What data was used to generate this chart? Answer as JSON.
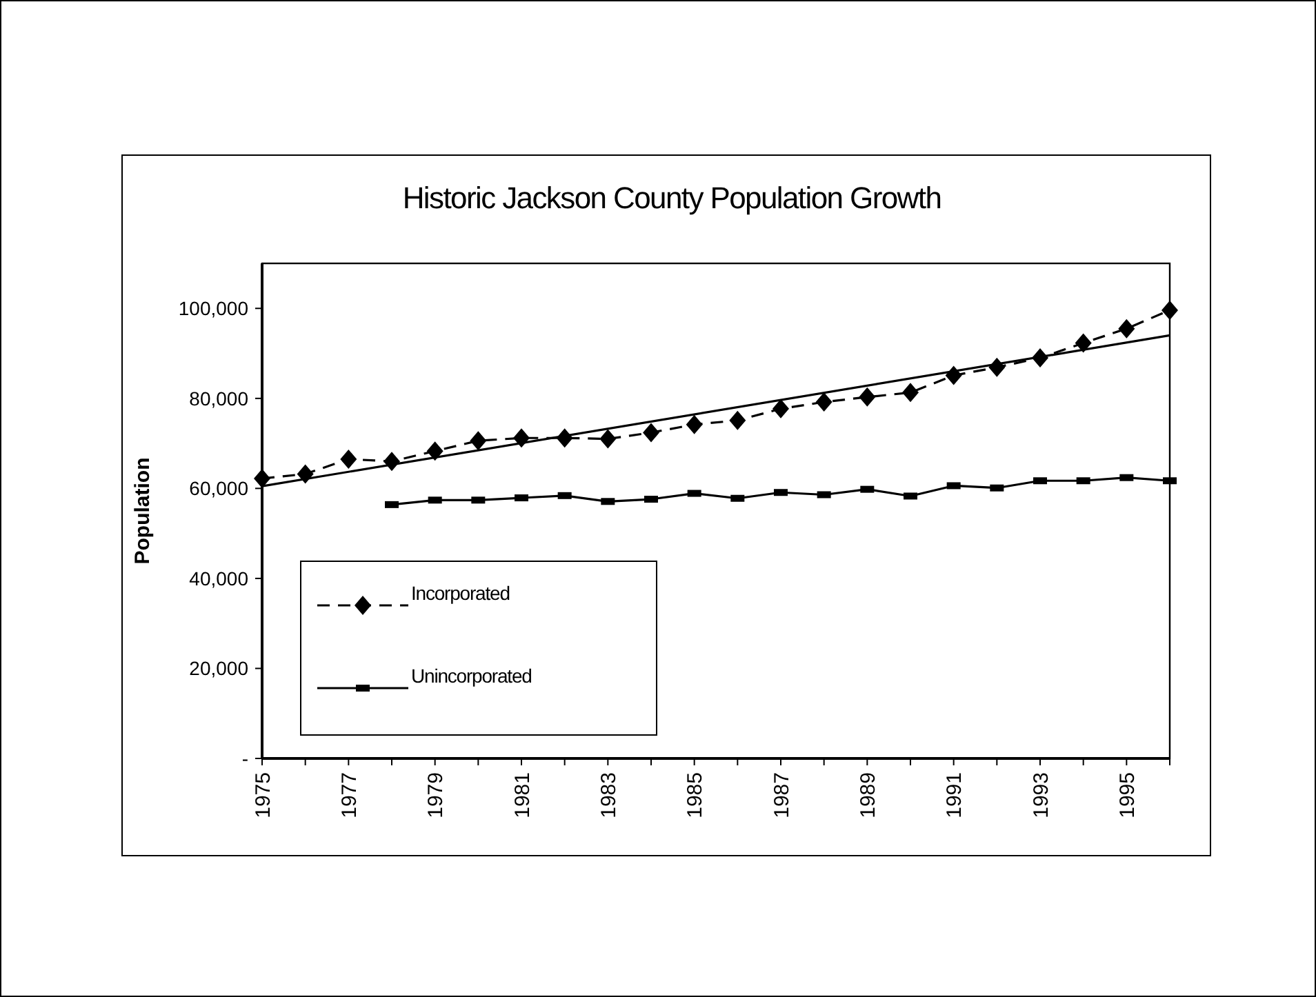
{
  "chart_data": {
    "type": "line",
    "title": "Historic Jackson County Population Growth",
    "ylabel": "Population",
    "xlim": [
      1975,
      1996
    ],
    "xticks": [
      1975,
      {
        "value": 1976,
        "label": null
      },
      1977,
      {
        "value": 1978,
        "label": null
      },
      1979,
      {
        "value": 1980,
        "label": null
      },
      1981,
      {
        "value": 1982,
        "label": null
      },
      1983,
      {
        "value": 1984,
        "label": null
      },
      1985,
      {
        "value": 1986,
        "label": null
      },
      1987,
      {
        "value": 1988,
        "label": null
      },
      1989,
      {
        "value": 1990,
        "label": null
      },
      1991,
      {
        "value": 1992,
        "label": null
      },
      1993,
      {
        "value": 1994,
        "label": null
      },
      1995,
      {
        "value": 1996,
        "label": null
      }
    ],
    "ylim": [
      0,
      110000
    ],
    "yticks": [
      {
        "value": 0,
        "label": "-"
      },
      {
        "value": 20000,
        "label": "20,000"
      },
      {
        "value": 40000,
        "label": "40,000"
      },
      {
        "value": 60000,
        "label": "60,000"
      },
      {
        "value": 80000,
        "label": "80,000"
      },
      {
        "value": 100000,
        "label": "100,000"
      }
    ],
    "grid": false,
    "legend": "bottom left",
    "series": [
      {
        "name": "Incorporated",
        "color": "#000000",
        "marker": "diamond",
        "line_style": "dashed",
        "x": [
          1975,
          1976,
          1977,
          1978,
          1979,
          1980,
          1981,
          1982,
          1983,
          1984,
          1985,
          1986,
          1987,
          1988,
          1989,
          1990,
          1991,
          1992,
          1993,
          1994,
          1995,
          1996
        ],
        "values": [
          62200,
          63200,
          66500,
          66000,
          68300,
          70600,
          71200,
          71200,
          71000,
          72400,
          74200,
          75100,
          77700,
          79200,
          80300,
          81300,
          85100,
          86900,
          89000,
          92300,
          95500,
          99600
        ]
      },
      {
        "name": "Unincorporated",
        "color": "#000000",
        "marker": "square",
        "line_style": "solid",
        "x": [
          1978,
          1979,
          1980,
          1981,
          1982,
          1983,
          1984,
          1985,
          1986,
          1987,
          1988,
          1989,
          1990,
          1991,
          1992,
          1993,
          1994,
          1995,
          1996
        ],
        "values": [
          56400,
          57400,
          57400,
          57900,
          58400,
          57100,
          57600,
          58900,
          57800,
          59100,
          58600,
          59800,
          58300,
          60600,
          60100,
          61700,
          61700,
          62400,
          61700
        ]
      },
      {
        "type": "line",
        "color": "#000000",
        "marker": "none",
        "line_style": "solid",
        "x": [
          1975,
          1996
        ],
        "values": [
          60500,
          94000
        ]
      }
    ]
  }
}
